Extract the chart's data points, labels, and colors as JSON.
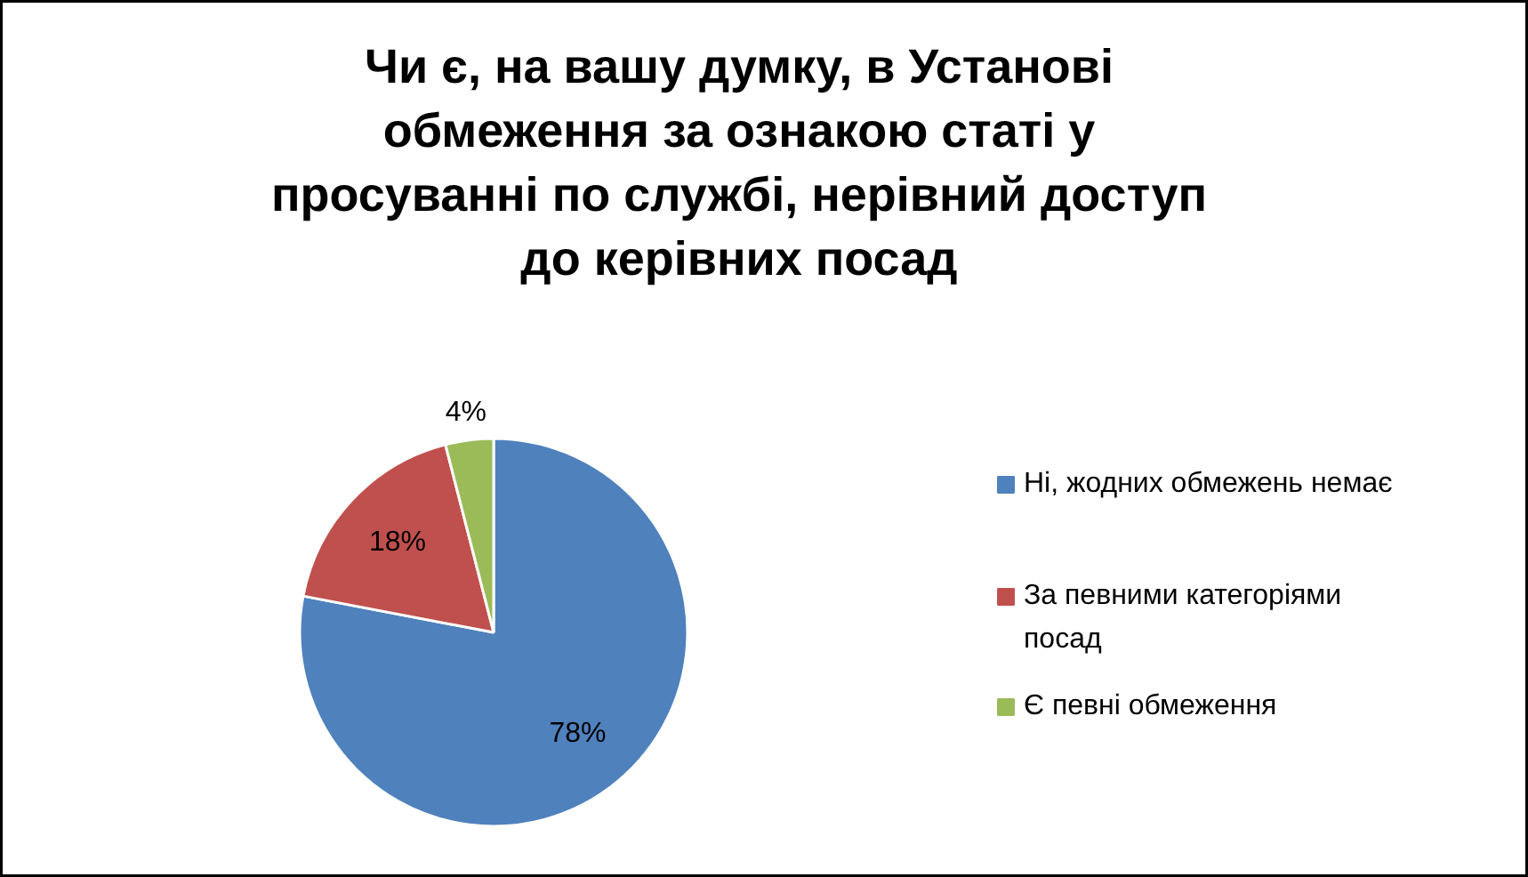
{
  "chart_data": {
    "type": "pie",
    "title": "Чи є, на вашу думку, в Установі обмеження за ознакою статі у просуванні по службі, нерівний доступ до керівних посад",
    "categories": [
      "Ні, жодних обмежень немає",
      "За певними категоріями посад",
      "Є певні обмеження"
    ],
    "values": [
      78,
      18,
      4
    ],
    "colors": [
      "#4f81bd",
      "#c0504d",
      "#9bbb59"
    ],
    "value_labels": [
      "78%",
      "18%",
      "4%"
    ],
    "legend": "right"
  }
}
